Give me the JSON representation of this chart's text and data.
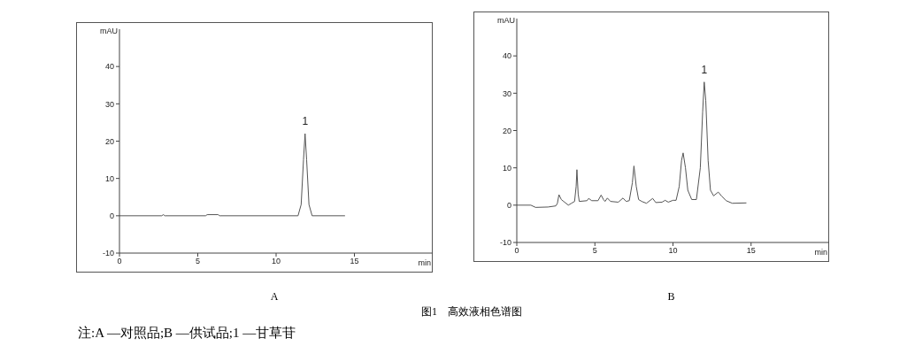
{
  "chart_data": [
    {
      "type": "line",
      "title": "A",
      "xlabel": "min",
      "ylabel": "mAU",
      "xlim": [
        0,
        20
      ],
      "xticks": [
        0,
        5,
        10,
        15
      ],
      "ylim": [
        -10,
        50
      ],
      "yticks": [
        -10,
        0,
        10,
        20,
        30,
        40
      ],
      "grid": false,
      "legend": false,
      "marker": "none",
      "line_style": "solid",
      "x": [
        0,
        2.7,
        2.8,
        2.9,
        5.5,
        5.6,
        6.3,
        6.4,
        11.4,
        11.6,
        11.75,
        11.85,
        11.95,
        12.1,
        12.3,
        14.4
      ],
      "series": [
        {
          "color": "#555555",
          "values": [
            0,
            0,
            0.3,
            0,
            0,
            0.3,
            0.3,
            0,
            0,
            3,
            15,
            22,
            15,
            3,
            0,
            0
          ]
        }
      ],
      "annotations": [
        {
          "text": "1",
          "x": 11.85,
          "y": 22
        },
        "图1　高效液相色谱图",
        "注:A —对照品;B —供试品;1 —甘草苷"
      ]
    },
    {
      "type": "line",
      "title": "B",
      "xlabel": "min",
      "ylabel": "mAU",
      "xlim": [
        0,
        20
      ],
      "xticks": [
        0,
        5,
        10,
        15
      ],
      "ylim": [
        -10,
        50
      ],
      "yticks": [
        -10,
        0,
        10,
        20,
        30,
        40
      ],
      "grid": false,
      "legend": false,
      "marker": "none",
      "line_style": "solid",
      "x": [
        0,
        0.9,
        1.2,
        2.0,
        2.5,
        2.6,
        2.7,
        2.85,
        3.0,
        3.3,
        3.5,
        3.7,
        3.8,
        3.85,
        3.93,
        4.0,
        4.5,
        4.6,
        4.8,
        5.2,
        5.4,
        5.55,
        5.65,
        5.8,
        6.0,
        6.5,
        6.8,
        7.0,
        7.2,
        7.4,
        7.5,
        7.65,
        7.8,
        8.0,
        8.3,
        8.7,
        8.9,
        9.3,
        9.5,
        9.7,
        10.0,
        10.2,
        10.4,
        10.55,
        10.65,
        10.8,
        10.95,
        11.2,
        11.5,
        11.75,
        11.9,
        12.0,
        12.1,
        12.25,
        12.4,
        12.6,
        12.9,
        13.1,
        13.4,
        13.8,
        14.7
      ],
      "series": [
        {
          "color": "#555555",
          "values": [
            0,
            0,
            -0.6,
            -0.5,
            -0.2,
            0.5,
            2.8,
            1.5,
            1,
            0,
            0.5,
            1,
            5,
            9.5,
            3,
            1,
            1.2,
            1.8,
            1.2,
            1.2,
            2.7,
            1.5,
            1,
            1.9,
            1.0,
            0.8,
            1.9,
            1.0,
            1.2,
            6,
            10.5,
            5,
            1.5,
            1,
            0.5,
            1.8,
            0.7,
            0.8,
            1.3,
            0.8,
            1.3,
            1.3,
            5,
            12,
            14,
            10,
            4,
            1.5,
            1.5,
            10,
            25,
            33,
            28,
            12,
            4,
            2.5,
            3.5,
            2.5,
            1.2,
            0.5,
            0.6
          ]
        }
      ],
      "annotations": [
        {
          "text": "1",
          "x": 12.0,
          "y": 33
        }
      ]
    }
  ]
}
